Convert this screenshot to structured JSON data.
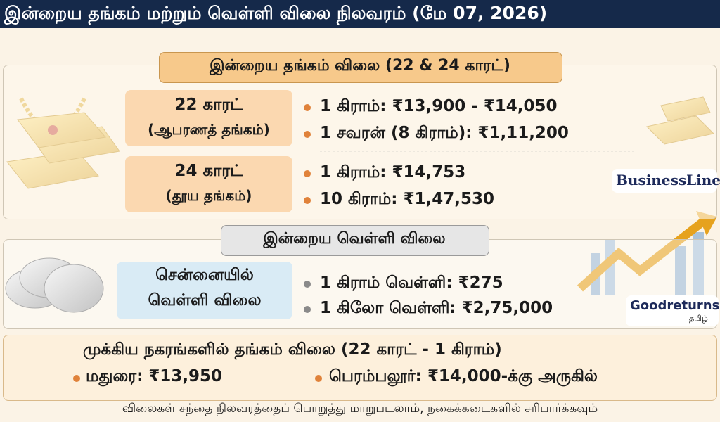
{
  "header": {
    "title": "இன்றைய தங்கம் மற்றும் வெள்ளி விலை நிலவரம் (மே 07, 2026)"
  },
  "gold": {
    "title": "இன்றைய தங்கம் விலை (22 & 24 காரட்)",
    "rows": [
      {
        "label": [
          "22 காரட்",
          "(ஆபரணத் தங்கம்)"
        ],
        "prices": [
          "1 கிராம்: ₹13,900 - ₹14,050",
          "1 சவரன் (8 கிராம்): ₹1,11,200"
        ]
      },
      {
        "label": [
          "24 காரட்",
          "(தூய தங்கம்)"
        ],
        "prices": [
          "1 கிராம்: ₹14,753",
          "10 கிராம்: ₹1,47,530"
        ]
      }
    ],
    "source": "BusinessLine."
  },
  "silver": {
    "title": "இன்றைய வெள்ளி விலை",
    "label": [
      "சென்னையில்",
      "வெள்ளி விலை"
    ],
    "prices": [
      "1 கிராம் வெள்ளி: ₹275",
      "1 கிலோ வெள்ளி: ₹2,75,000"
    ],
    "source": {
      "name": "Goodreturns",
      "sub": "தமிழ்"
    }
  },
  "cities": {
    "title": "முக்கிய நகரங்களில் தங்கம் விலை (22 காரட் - 1 கிராம்)",
    "items": [
      "மதுரை: ₹13,950",
      "பெரம்பலூர்: ₹14,000-க்கு அருகில்"
    ]
  },
  "footer": {
    "note": "விலைகள் சந்தை நிலவரத்தைப் பொறுத்து மாறுபடலாம், நகைக்கடைகளில் சரிபார்க்கவும்"
  }
}
